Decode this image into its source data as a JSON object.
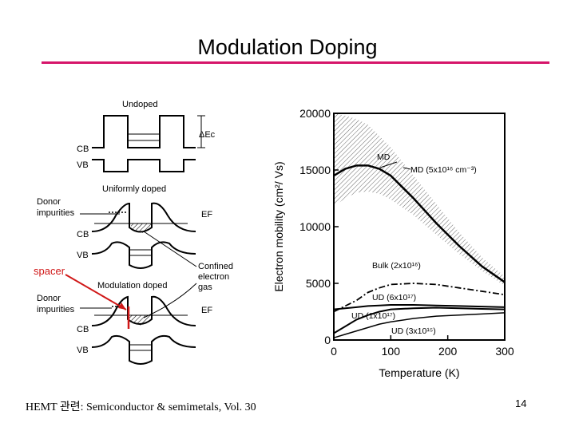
{
  "slide": {
    "title": "Modulation Doping",
    "caption": "HEMT 관련: Semiconductor & semimetals, Vol. 30",
    "page_number": "14",
    "spacer_label": "spacer"
  },
  "band_diagram": {
    "undoped_label": "Undoped",
    "uniform_label": "Uniformly  doped",
    "modulation_label": "Modulation  doped",
    "cb": "CB",
    "vb": "VB",
    "ec": "ΔEc",
    "ef": "EF",
    "donor_label_1": "Donor",
    "donor_label_2": "impurities",
    "confined_1": "Confined",
    "confined_2": "electron",
    "confined_3": "gas"
  },
  "chart_data": {
    "type": "line",
    "xlabel": "Temperature   (K)",
    "ylabel": "Electron  mobility  (cm²/ Vs)",
    "xlim": [
      0,
      300
    ],
    "ylim": [
      0,
      20000
    ],
    "xticks": [
      "0",
      "100",
      "200",
      "300"
    ],
    "yticks": [
      "0",
      "5000",
      "10000",
      "15000",
      "20000"
    ],
    "x": [
      0,
      20,
      40,
      60,
      80,
      100,
      140,
      180,
      220,
      260,
      300
    ],
    "series": [
      {
        "name": "MD (5x10¹⁶ cm⁻³)",
        "label": "MD",
        "values": [
          14500,
          15100,
          15400,
          15400,
          15100,
          14500,
          12500,
          10300,
          8300,
          6500,
          5100
        ]
      },
      {
        "name": "Bulk (2x10¹⁶)",
        "values": [
          2500,
          3000,
          3500,
          4200,
          4600,
          4900,
          5000,
          4900,
          4600,
          4300,
          4000
        ]
      },
      {
        "name": "UD (6x10¹⁷)",
        "values": [
          2700,
          2800,
          2900,
          3000,
          3050,
          3100,
          3100,
          3050,
          3000,
          2950,
          2900
        ]
      },
      {
        "name": "UD (1x10¹⁷)",
        "values": [
          600,
          1200,
          1800,
          2200,
          2500,
          2700,
          2800,
          2850,
          2800,
          2750,
          2700
        ]
      },
      {
        "name": "UD (3x10¹⁵)",
        "values": [
          200,
          500,
          800,
          1100,
          1400,
          1600,
          1900,
          2100,
          2200,
          2300,
          2400
        ]
      }
    ],
    "band_upper": [
      20000,
      19800,
      19500,
      19000,
      18000,
      17000,
      14500,
      12000,
      9500,
      7300,
      5600
    ],
    "band_lower": [
      11800,
      12500,
      13000,
      13100,
      12900,
      12400,
      11000,
      9300,
      7600,
      6100,
      4800
    ]
  }
}
